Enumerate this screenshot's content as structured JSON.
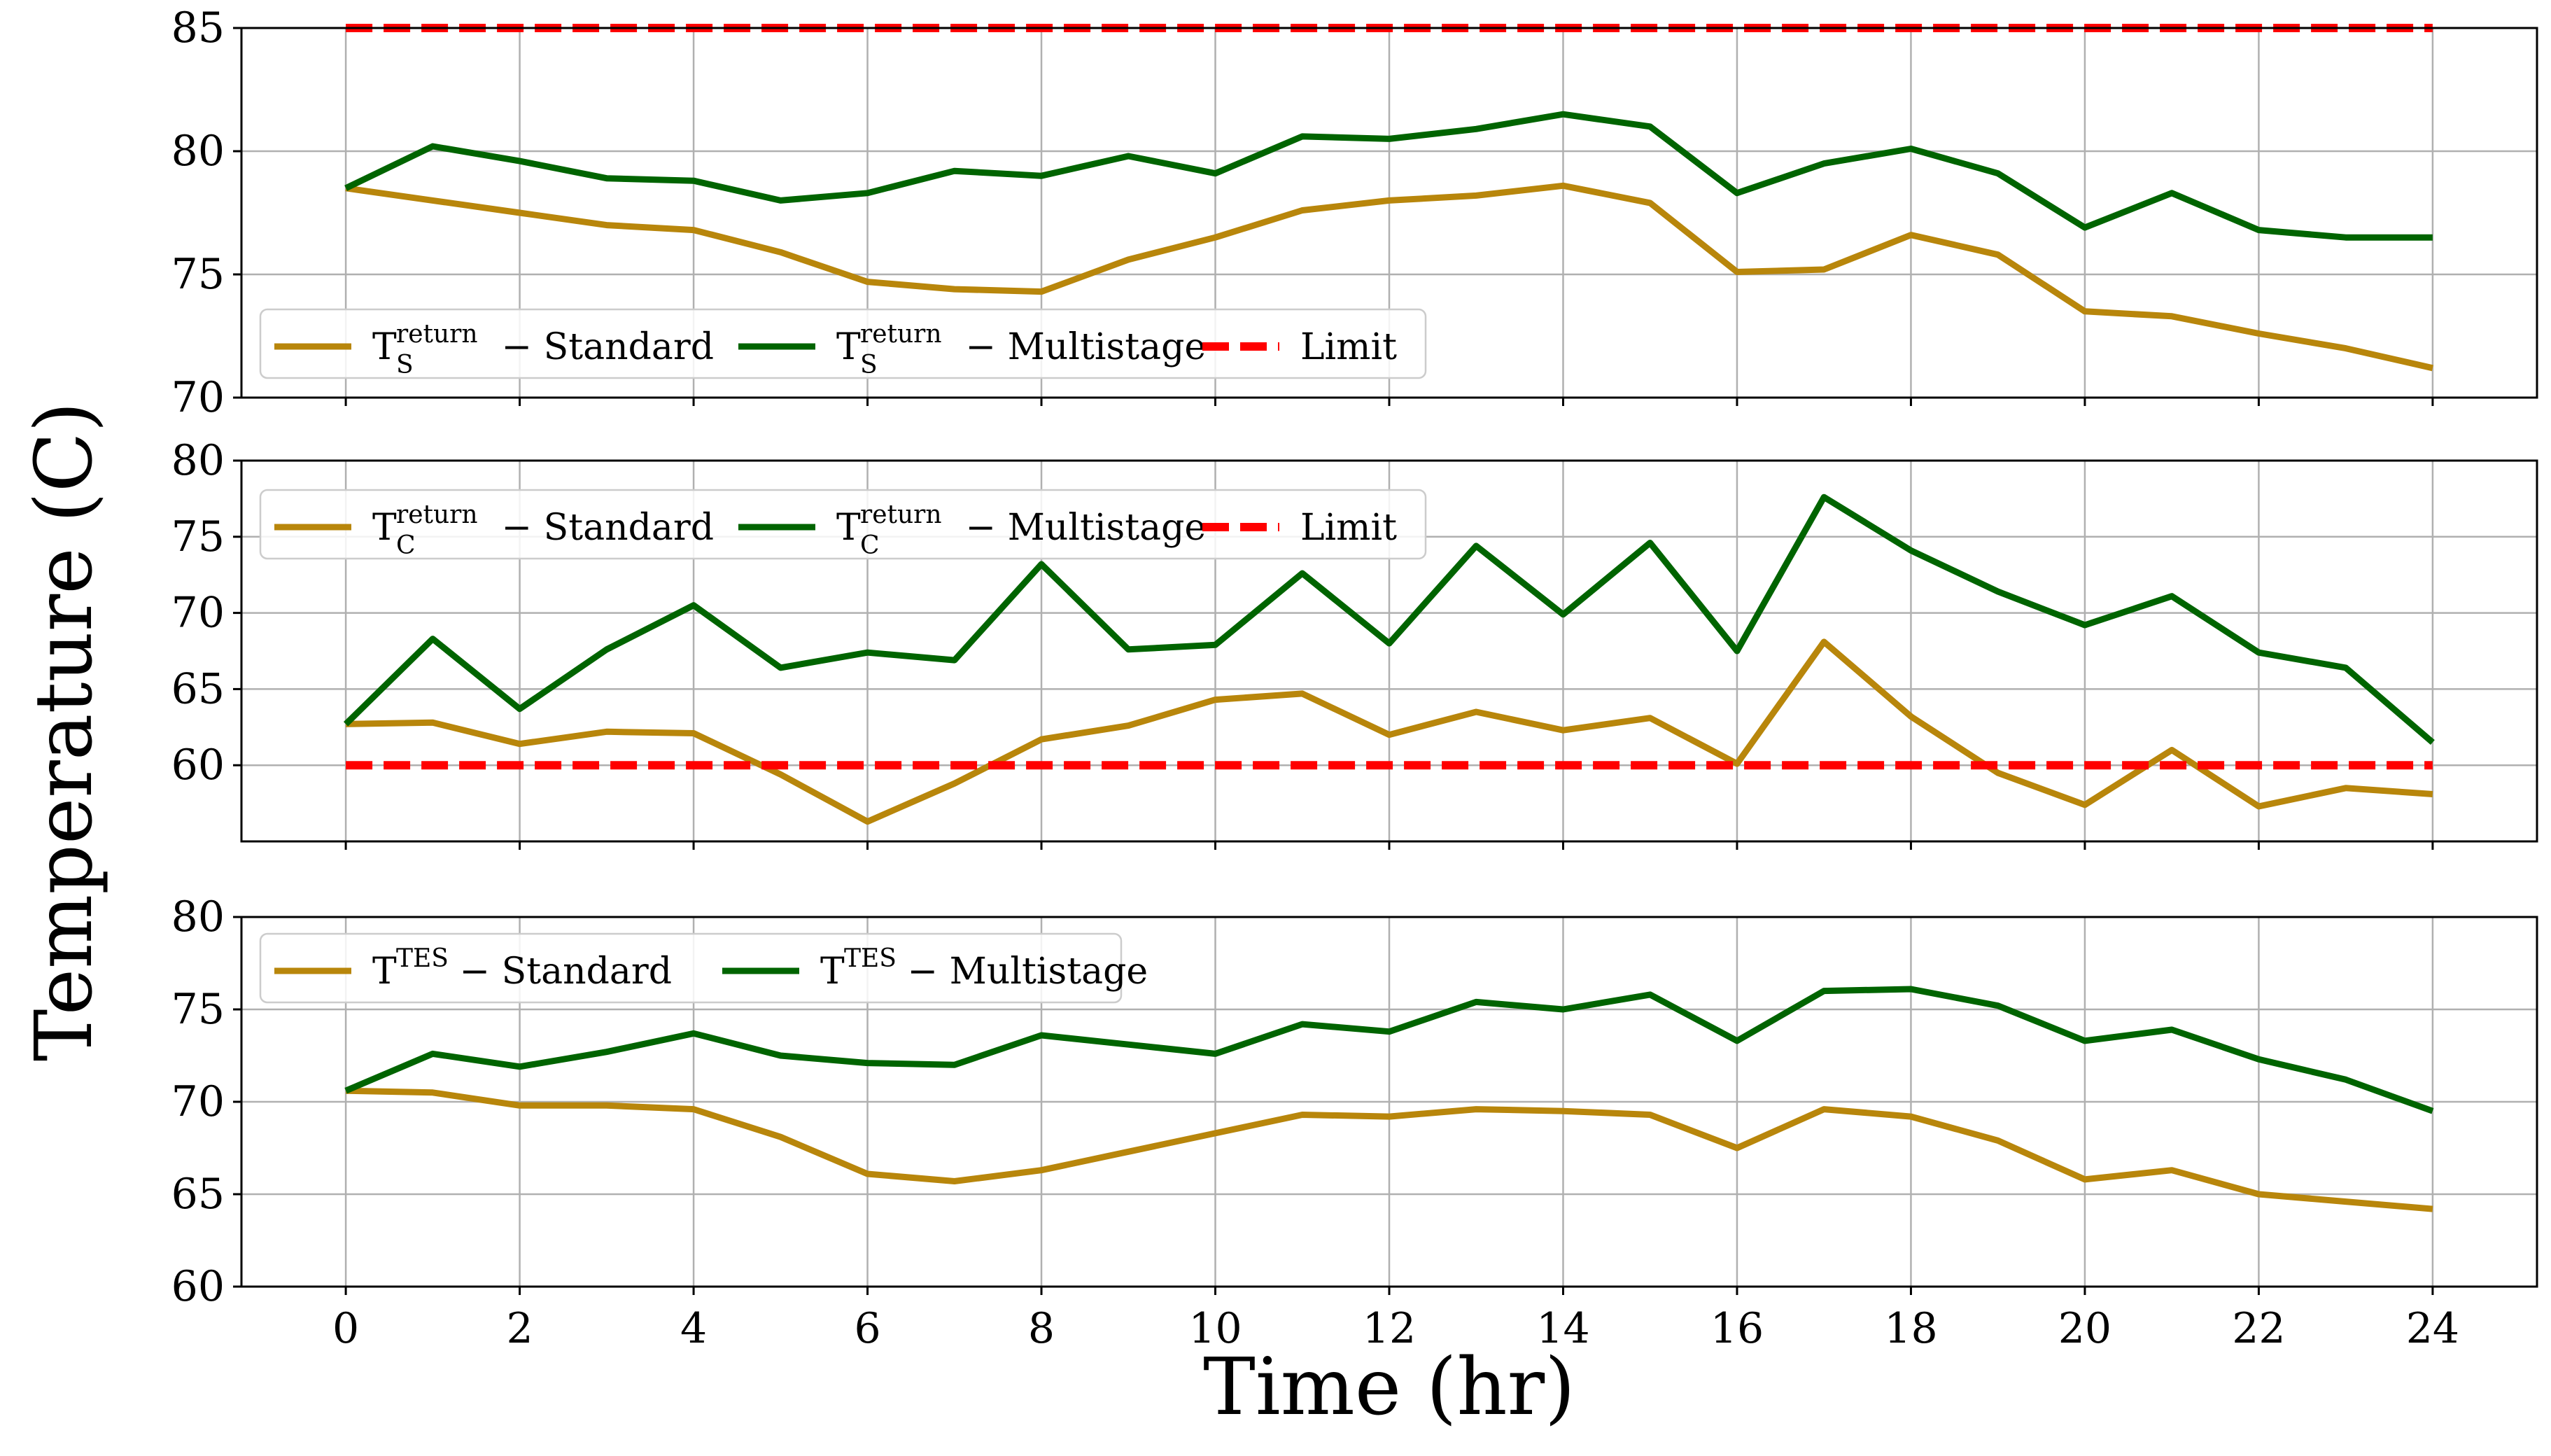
{
  "colors": {
    "standard": "#b8860b",
    "multistage": "#006400",
    "limit": "#ff0000"
  },
  "chart_data": [
    {
      "type": "line",
      "panel": "top",
      "x": [
        0,
        1,
        2,
        3,
        4,
        5,
        6,
        7,
        8,
        9,
        10,
        11,
        12,
        13,
        14,
        15,
        16,
        17,
        18,
        19,
        20,
        21,
        22,
        23,
        24
      ],
      "ylim": [
        70,
        85
      ],
      "yticks": [
        "70",
        "75",
        "80",
        "85"
      ],
      "legend_position": "lower-left",
      "series": [
        {
          "base": "T",
          "sup": "return",
          "sub": "S",
          "label": " − Standard",
          "color_key": "standard",
          "dashed": false,
          "values": [
            78.5,
            78.0,
            77.5,
            77.0,
            76.8,
            75.9,
            74.7,
            74.4,
            74.3,
            75.6,
            76.5,
            77.6,
            78.0,
            78.2,
            78.6,
            77.9,
            75.1,
            75.2,
            76.6,
            75.8,
            73.5,
            73.3,
            72.6,
            72.0,
            71.2
          ]
        },
        {
          "base": "T",
          "sup": "return",
          "sub": "S",
          "label": " − Multistage",
          "color_key": "multistage",
          "dashed": false,
          "values": [
            78.5,
            80.2,
            79.6,
            78.9,
            78.8,
            78.0,
            78.3,
            79.2,
            79.0,
            79.8,
            79.1,
            80.6,
            80.5,
            80.9,
            81.5,
            81.0,
            78.3,
            79.5,
            80.1,
            79.1,
            76.9,
            78.3,
            76.8,
            76.5,
            76.5
          ]
        },
        {
          "base": "",
          "sup": "",
          "sub": "",
          "label": "Limit",
          "color_key": "limit",
          "dashed": true,
          "values": [
            85,
            85,
            85,
            85,
            85,
            85,
            85,
            85,
            85,
            85,
            85,
            85,
            85,
            85,
            85,
            85,
            85,
            85,
            85,
            85,
            85,
            85,
            85,
            85,
            85
          ]
        }
      ]
    },
    {
      "type": "line",
      "panel": "middle",
      "x": [
        0,
        1,
        2,
        3,
        4,
        5,
        6,
        7,
        8,
        9,
        10,
        11,
        12,
        13,
        14,
        15,
        16,
        17,
        18,
        19,
        20,
        21,
        22,
        23,
        24
      ],
      "ylim": [
        55,
        80
      ],
      "yticks": [
        "60",
        "65",
        "70",
        "75",
        "80"
      ],
      "legend_position": "upper-left",
      "series": [
        {
          "base": "T",
          "sup": "return",
          "sub": "C",
          "label": " − Standard",
          "color_key": "standard",
          "dashed": false,
          "values": [
            62.7,
            62.8,
            61.4,
            62.2,
            62.1,
            59.4,
            56.3,
            58.8,
            61.7,
            62.6,
            64.3,
            64.7,
            62.0,
            63.5,
            62.3,
            63.1,
            60.1,
            68.1,
            63.2,
            59.5,
            57.4,
            61.0,
            57.3,
            58.5,
            58.1
          ]
        },
        {
          "base": "T",
          "sup": "return",
          "sub": "C",
          "label": " − Multistage",
          "color_key": "multistage",
          "dashed": false,
          "values": [
            62.7,
            68.3,
            63.7,
            67.6,
            70.5,
            66.4,
            67.4,
            66.9,
            73.2,
            67.6,
            67.9,
            72.6,
            68.0,
            74.4,
            69.9,
            74.6,
            67.5,
            77.6,
            74.1,
            71.4,
            69.2,
            71.1,
            67.4,
            66.4,
            61.5
          ]
        },
        {
          "base": "",
          "sup": "",
          "sub": "",
          "label": "Limit",
          "color_key": "limit",
          "dashed": true,
          "values": [
            60,
            60,
            60,
            60,
            60,
            60,
            60,
            60,
            60,
            60,
            60,
            60,
            60,
            60,
            60,
            60,
            60,
            60,
            60,
            60,
            60,
            60,
            60,
            60,
            60
          ]
        }
      ]
    },
    {
      "type": "line",
      "panel": "bottom",
      "x": [
        0,
        1,
        2,
        3,
        4,
        5,
        6,
        7,
        8,
        9,
        10,
        11,
        12,
        13,
        14,
        15,
        16,
        17,
        18,
        19,
        20,
        21,
        22,
        23,
        24
      ],
      "ylim": [
        60,
        80
      ],
      "yticks": [
        "60",
        "65",
        "70",
        "75",
        "80"
      ],
      "legend_position": "upper-left",
      "series": [
        {
          "base": "T",
          "sup": "TES",
          "sub": "",
          "label": " − Standard",
          "color_key": "standard",
          "dashed": false,
          "values": [
            70.6,
            70.5,
            69.8,
            69.8,
            69.6,
            68.1,
            66.1,
            65.7,
            66.3,
            67.3,
            68.3,
            69.3,
            69.2,
            69.6,
            69.5,
            69.3,
            67.5,
            69.6,
            69.2,
            67.9,
            65.8,
            66.3,
            65.0,
            64.6,
            64.2
          ]
        },
        {
          "base": "T",
          "sup": "TES",
          "sub": "",
          "label": " − Multistage",
          "color_key": "multistage",
          "dashed": false,
          "values": [
            70.6,
            72.6,
            71.9,
            72.7,
            73.7,
            72.5,
            72.1,
            72.0,
            73.6,
            73.1,
            72.6,
            74.2,
            73.8,
            75.4,
            75.0,
            75.8,
            73.3,
            76.0,
            76.1,
            75.2,
            73.3,
            73.9,
            72.3,
            71.2,
            69.5
          ]
        }
      ]
    }
  ],
  "xticks": [
    "0",
    "2",
    "4",
    "6",
    "8",
    "10",
    "12",
    "14",
    "16",
    "18",
    "20",
    "22",
    "24"
  ],
  "xlabel": "Time (hr)",
  "ylabel": "Temperature (C)"
}
